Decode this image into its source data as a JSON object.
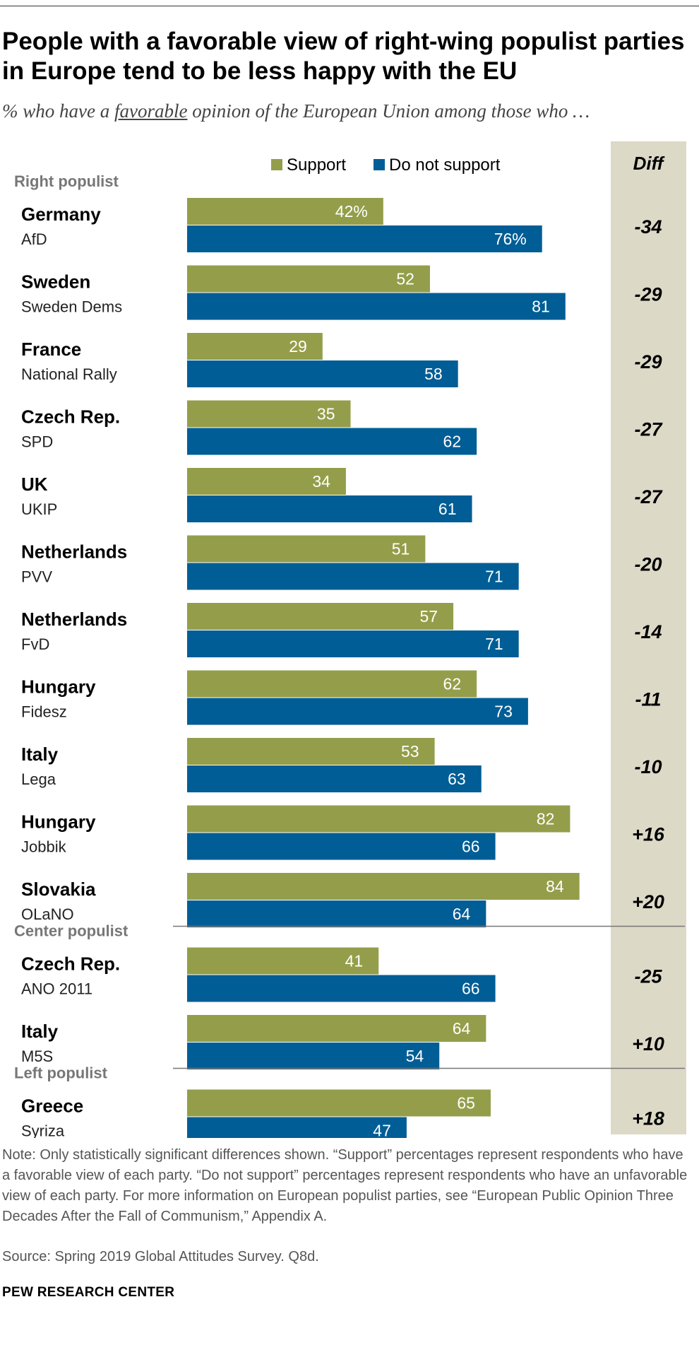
{
  "title": "People with a favorable view of right-wing populist parties in Europe tend to be less happy with the EU",
  "subtitle_before": "% who have a ",
  "subtitle_underlined": "favorable",
  "subtitle_after": " opinion of the European Union among those who …",
  "note": "Note: Only statistically significant differences shown. “Support” percentages represent respondents who have a favorable view of each party. “Do not support” percentages represent respondents who have an unfavorable view of each party. For more information on European populist parties, see “European Public Opinion Three Decades After the Fall of Communism,” Appendix A.",
  "source": "Source: Spring 2019 Global Attitudes Survey. Q8d.",
  "brand": "PEW RESEARCH CENTER",
  "colors": {
    "support": "#949e4a",
    "not_support": "#005d95",
    "diff_bg": "#dcd9c7",
    "group_label": "#777777"
  },
  "chart_data": {
    "type": "bar",
    "orientation": "horizontal",
    "xlim": [
      0,
      100
    ],
    "legend_position": "top",
    "diff_header": "Diff",
    "series": [
      {
        "name": "Support",
        "key": "support"
      },
      {
        "name": "Do not support",
        "key": "not_support"
      }
    ],
    "groups": [
      {
        "label": "Right populist",
        "rows": [
          {
            "country": "Germany",
            "party": "AfD",
            "support": 42,
            "not_support": 76,
            "support_label": "42%",
            "not_support_label": "76%",
            "diff": "-34"
          },
          {
            "country": "Sweden",
            "party": "Sweden Dems",
            "support": 52,
            "not_support": 81,
            "support_label": "52",
            "not_support_label": "81",
            "diff": "-29"
          },
          {
            "country": "France",
            "party": "National Rally",
            "support": 29,
            "not_support": 58,
            "support_label": "29",
            "not_support_label": "58",
            "diff": "-29"
          },
          {
            "country": "Czech Rep.",
            "party": "SPD",
            "support": 35,
            "not_support": 62,
            "support_label": "35",
            "not_support_label": "62",
            "diff": "-27"
          },
          {
            "country": "UK",
            "party": "UKIP",
            "support": 34,
            "not_support": 61,
            "support_label": "34",
            "not_support_label": "61",
            "diff": "-27"
          },
          {
            "country": "Netherlands",
            "party": "PVV",
            "support": 51,
            "not_support": 71,
            "support_label": "51",
            "not_support_label": "71",
            "diff": "-20"
          },
          {
            "country": "Netherlands",
            "party": "FvD",
            "support": 57,
            "not_support": 71,
            "support_label": "57",
            "not_support_label": "71",
            "diff": "-14"
          },
          {
            "country": "Hungary",
            "party": "Fidesz",
            "support": 62,
            "not_support": 73,
            "support_label": "62",
            "not_support_label": "73",
            "diff": "-11"
          },
          {
            "country": "Italy",
            "party": "Lega",
            "support": 53,
            "not_support": 63,
            "support_label": "53",
            "not_support_label": "63",
            "diff": "-10"
          },
          {
            "country": "Hungary",
            "party": "Jobbik",
            "support": 82,
            "not_support": 66,
            "support_label": "82",
            "not_support_label": "66",
            "diff": "+16"
          },
          {
            "country": "Slovakia",
            "party": "OLaNO",
            "support": 84,
            "not_support": 64,
            "support_label": "84",
            "not_support_label": "64",
            "diff": "+20"
          }
        ]
      },
      {
        "label": "Center populist",
        "rows": [
          {
            "country": "Czech Rep.",
            "party": "ANO 2011",
            "support": 41,
            "not_support": 66,
            "support_label": "41",
            "not_support_label": "66",
            "diff": "-25"
          },
          {
            "country": "Italy",
            "party": "M5S",
            "support": 64,
            "not_support": 54,
            "support_label": "64",
            "not_support_label": "54",
            "diff": "+10"
          }
        ]
      },
      {
        "label": "Left populist",
        "rows": [
          {
            "country": "Greece",
            "party": "Syriza",
            "support": 65,
            "not_support": 47,
            "support_label": "65",
            "not_support_label": "47",
            "diff": "+18"
          }
        ]
      }
    ]
  }
}
